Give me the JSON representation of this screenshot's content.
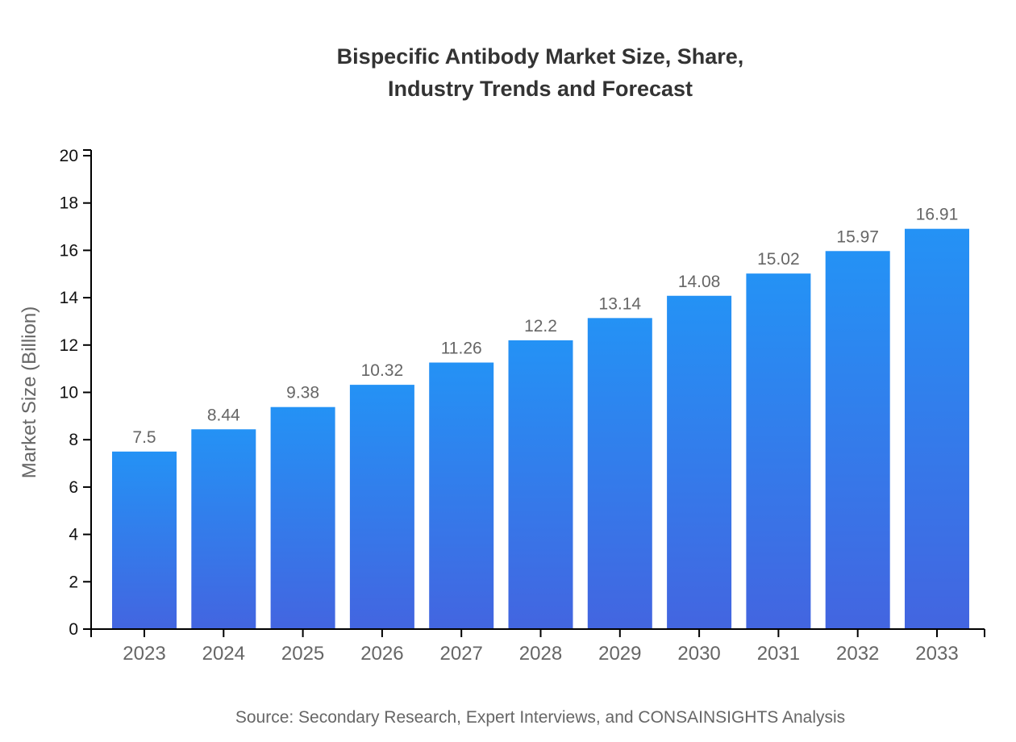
{
  "header": {
    "title_line1": "Bispecific Antibody Market Size, Share,",
    "title_line2": "Industry Trends and Forecast"
  },
  "footer": {
    "source": "Source: Secondary Research, Expert Interviews, and CONSAINSIGHTS Analysis"
  },
  "chart_data": {
    "type": "bar",
    "title": "Bispecific Antibody Market Size, Share, Industry Trends and Forecast",
    "categories": [
      "2023",
      "2024",
      "2025",
      "2026",
      "2027",
      "2028",
      "2029",
      "2030",
      "2031",
      "2032",
      "2033"
    ],
    "values": [
      7.5,
      8.44,
      9.38,
      10.32,
      11.26,
      12.2,
      13.14,
      14.08,
      15.02,
      15.97,
      16.91
    ],
    "value_labels": [
      "7.5",
      "8.44",
      "9.38",
      "10.32",
      "11.26",
      "12.2",
      "13.14",
      "14.08",
      "15.02",
      "15.97",
      "16.91"
    ],
    "xlabel": "",
    "ylabel": "Market Size (Billion)",
    "ylim": [
      0,
      20
    ],
    "ytick_step": 2,
    "grid": false,
    "legend": false,
    "colors": {
      "bar_gradient_top": "#2492f5",
      "bar_gradient_bottom": "#4365e0",
      "value_label": "#666666",
      "x_tick_label": "#666666",
      "y_tick_label": "#111111",
      "y_axis_title": "#666666",
      "axis_line": "#000000",
      "title": "#333333",
      "source": "#666666"
    }
  }
}
